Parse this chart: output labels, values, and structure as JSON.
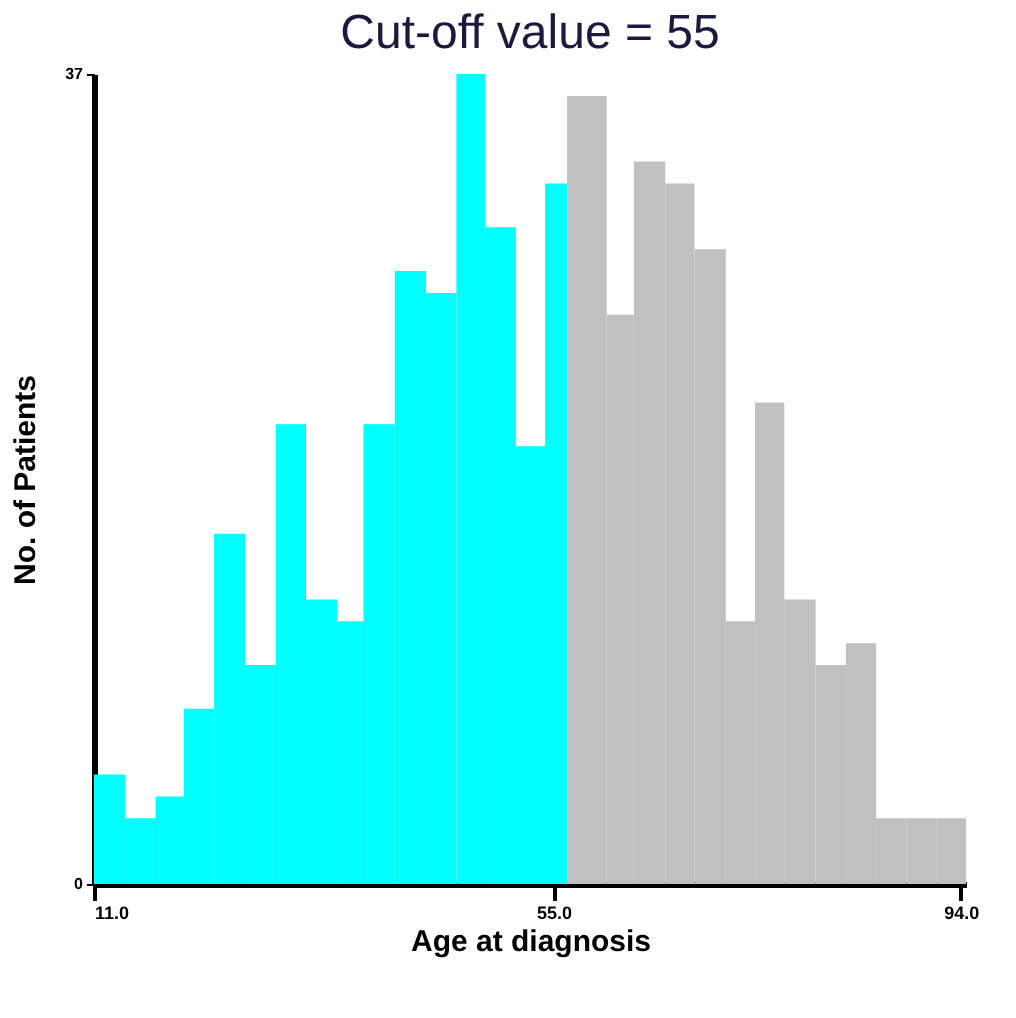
{
  "chart_data": {
    "type": "histogram",
    "title": "Cut-off value = 55",
    "xlabel": "Age at diagnosis",
    "ylabel": "No. of Patients",
    "bins": [
      11,
      14,
      16.9,
      19.6,
      22.5,
      25.5,
      28.4,
      31.3,
      34.3,
      36.8,
      39.8,
      42.8,
      45.7,
      48.5,
      51.4,
      54.2,
      56.3,
      60.1,
      62.7,
      65.7,
      68.5,
      71.5,
      74.3,
      77.1,
      80.1,
      83,
      85.9,
      88.8,
      91.7,
      94.5
    ],
    "values": [
      5,
      3,
      4,
      8,
      16,
      10,
      21,
      13,
      12,
      21,
      28,
      27,
      37,
      30,
      20,
      32,
      36,
      26,
      33,
      32,
      29,
      12,
      22,
      13,
      10,
      11,
      3,
      3,
      3
    ],
    "colors": [
      "#00ffff",
      "#00ffff",
      "#00ffff",
      "#00ffff",
      "#00ffff",
      "#00ffff",
      "#00ffff",
      "#00ffff",
      "#00ffff",
      "#00ffff",
      "#00ffff",
      "#00ffff",
      "#00ffff",
      "#00ffff",
      "#00ffff",
      "#00ffff",
      "#c0c0c0",
      "#c0c0c0",
      "#c0c0c0",
      "#c0c0c0",
      "#c0c0c0",
      "#c0c0c0",
      "#c0c0c0",
      "#c0c0c0",
      "#c0c0c0",
      "#c0c0c0",
      "#c0c0c0",
      "#c0c0c0",
      "#c0c0c0"
    ],
    "xlim": [
      11,
      94.5
    ],
    "xticks": [
      {
        "value": 11,
        "label": "11.0"
      },
      {
        "value": 55,
        "label": "55.0"
      },
      {
        "value": 94,
        "label": "94.0"
      }
    ],
    "ylim": [
      0,
      37
    ],
    "yticks": [
      0,
      37
    ],
    "grid": false
  }
}
